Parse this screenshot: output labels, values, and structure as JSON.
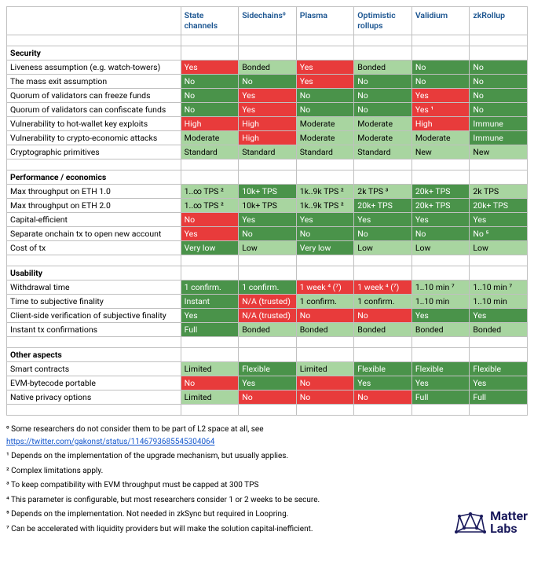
{
  "colors": {
    "green_dark": "#4a934a",
    "green_light": "#a8d5a0",
    "red": "#e83b3b",
    "header_text": "#1a5490",
    "link": "#1155cc",
    "logo": "#1a1a5c"
  },
  "columns": [
    "",
    "State channels",
    "Sidechains⁰",
    "Plasma",
    "Optimistic rollups",
    "Validium",
    "zkRollup"
  ],
  "sections": [
    {
      "title": "Security",
      "rows": [
        {
          "label": "Liveness assumption (e.g. watch-towers)",
          "cells": [
            {
              "t": "Yes",
              "c": "red"
            },
            {
              "t": "Bonded",
              "c": "green-light"
            },
            {
              "t": "Yes",
              "c": "red"
            },
            {
              "t": "Bonded",
              "c": "green-light"
            },
            {
              "t": "No",
              "c": "green-dark"
            },
            {
              "t": "No",
              "c": "green-dark"
            }
          ]
        },
        {
          "label": "The mass exit assumption",
          "cells": [
            {
              "t": "No",
              "c": "green-dark"
            },
            {
              "t": "No",
              "c": "green-dark"
            },
            {
              "t": "Yes",
              "c": "red"
            },
            {
              "t": "No",
              "c": "green-dark"
            },
            {
              "t": "No",
              "c": "green-dark"
            },
            {
              "t": "No",
              "c": "green-dark"
            }
          ]
        },
        {
          "label": "Quorum of validators can freeze funds",
          "cells": [
            {
              "t": "No",
              "c": "green-dark"
            },
            {
              "t": "Yes",
              "c": "red"
            },
            {
              "t": "No",
              "c": "green-dark"
            },
            {
              "t": "No",
              "c": "green-dark"
            },
            {
              "t": "Yes",
              "c": "red"
            },
            {
              "t": "No",
              "c": "green-dark"
            }
          ]
        },
        {
          "label": "Quorum of validators can confiscate funds",
          "cells": [
            {
              "t": "No",
              "c": "green-dark"
            },
            {
              "t": "Yes",
              "c": "red"
            },
            {
              "t": "No",
              "c": "green-dark"
            },
            {
              "t": "No",
              "c": "green-dark"
            },
            {
              "t": "Yes ¹",
              "c": "red"
            },
            {
              "t": "No",
              "c": "green-dark"
            }
          ]
        },
        {
          "label": "Vulnerability to hot-wallet key exploits",
          "cells": [
            {
              "t": "High",
              "c": "red"
            },
            {
              "t": "High",
              "c": "red"
            },
            {
              "t": "Moderate",
              "c": "green-light"
            },
            {
              "t": "Moderate",
              "c": "green-light"
            },
            {
              "t": "High",
              "c": "red"
            },
            {
              "t": "Immune",
              "c": "green-dark"
            }
          ]
        },
        {
          "label": "Vulnerability to crypto-economic attacks",
          "cells": [
            {
              "t": "Moderate",
              "c": "green-light"
            },
            {
              "t": "High",
              "c": "red"
            },
            {
              "t": "Moderate",
              "c": "green-light"
            },
            {
              "t": "Moderate",
              "c": "green-light"
            },
            {
              "t": "Moderate",
              "c": "green-light"
            },
            {
              "t": "Immune",
              "c": "green-dark"
            }
          ]
        },
        {
          "label": "Cryptographic primitives",
          "cells": [
            {
              "t": "Standard",
              "c": "green-light"
            },
            {
              "t": "Standard",
              "c": "green-light"
            },
            {
              "t": "Standard",
              "c": "green-light"
            },
            {
              "t": "Standard",
              "c": "green-light"
            },
            {
              "t": "New",
              "c": "green-light"
            },
            {
              "t": "New",
              "c": "green-light"
            }
          ]
        }
      ]
    },
    {
      "title": "Performance / economics",
      "rows": [
        {
          "label": "Max throughput on ETH 1.0",
          "cells": [
            {
              "t": "1..∞ TPS ²",
              "c": "green-light"
            },
            {
              "t": "10k+ TPS",
              "c": "green-dark"
            },
            {
              "t": "1k..9k TPS ²",
              "c": "green-light"
            },
            {
              "t": "2k TPS ³",
              "c": "green-light"
            },
            {
              "t": "20k+ TPS",
              "c": "green-dark"
            },
            {
              "t": "2k TPS",
              "c": "green-light"
            }
          ]
        },
        {
          "label": "Max throughput on ETH 2.0",
          "cells": [
            {
              "t": "1..∞ TPS ²",
              "c": "green-light"
            },
            {
              "t": "10k+ TPS",
              "c": "green-light"
            },
            {
              "t": "1k..9k TPS ²",
              "c": "green-light"
            },
            {
              "t": "20k+ TPS",
              "c": "green-dark"
            },
            {
              "t": "20k+ TPS",
              "c": "green-dark"
            },
            {
              "t": "20k+ TPS",
              "c": "green-dark"
            }
          ]
        },
        {
          "label": "Capital-efficient",
          "cells": [
            {
              "t": "No",
              "c": "red"
            },
            {
              "t": "Yes",
              "c": "green-dark"
            },
            {
              "t": "Yes",
              "c": "green-dark"
            },
            {
              "t": "Yes",
              "c": "green-dark"
            },
            {
              "t": "Yes",
              "c": "green-dark"
            },
            {
              "t": "Yes",
              "c": "green-dark"
            }
          ]
        },
        {
          "label": "Separate onchain tx to open new account",
          "cells": [
            {
              "t": "Yes",
              "c": "red"
            },
            {
              "t": "No",
              "c": "green-dark"
            },
            {
              "t": "No",
              "c": "green-dark"
            },
            {
              "t": "No",
              "c": "green-dark"
            },
            {
              "t": "No",
              "c": "green-dark"
            },
            {
              "t": "No ⁵",
              "c": "green-dark"
            }
          ]
        },
        {
          "label": "Cost of tx",
          "cells": [
            {
              "t": "Very low",
              "c": "green-dark"
            },
            {
              "t": "Low",
              "c": "green-light"
            },
            {
              "t": "Very low",
              "c": "green-dark"
            },
            {
              "t": "Low",
              "c": "green-light"
            },
            {
              "t": "Low",
              "c": "green-light"
            },
            {
              "t": "Low",
              "c": "green-light"
            }
          ]
        }
      ]
    },
    {
      "title": "Usability",
      "rows": [
        {
          "label": "Withdrawal time",
          "cells": [
            {
              "t": "1 confirm.",
              "c": "green-dark"
            },
            {
              "t": "1 confirm.",
              "c": "green-dark"
            },
            {
              "t": "1 week ⁴ (⁷)",
              "c": "red"
            },
            {
              "t": "1 week ⁴ (⁷)",
              "c": "red"
            },
            {
              "t": "1..10 min ⁷",
              "c": "green-light"
            },
            {
              "t": "1..10 min ⁷",
              "c": "green-light"
            }
          ]
        },
        {
          "label": "Time to subjective finality",
          "cells": [
            {
              "t": "Instant",
              "c": "green-dark"
            },
            {
              "t": "N/A (trusted)",
              "c": "red"
            },
            {
              "t": "1 confirm.",
              "c": "green-light"
            },
            {
              "t": "1 confirm.",
              "c": "green-light"
            },
            {
              "t": "1..10 min",
              "c": "green-light"
            },
            {
              "t": "1..10 min",
              "c": "green-light"
            }
          ]
        },
        {
          "label": "Client-side verification of subjective finality",
          "cells": [
            {
              "t": "Yes",
              "c": "green-dark"
            },
            {
              "t": "N/A (trusted)",
              "c": "red"
            },
            {
              "t": "No",
              "c": "red"
            },
            {
              "t": "No",
              "c": "red"
            },
            {
              "t": "Yes",
              "c": "green-dark"
            },
            {
              "t": "Yes",
              "c": "green-dark"
            }
          ]
        },
        {
          "label": "Instant tx confirmations",
          "cells": [
            {
              "t": "Full",
              "c": "green-dark"
            },
            {
              "t": "Bonded",
              "c": "green-light"
            },
            {
              "t": "Bonded",
              "c": "green-light"
            },
            {
              "t": "Bonded",
              "c": "green-light"
            },
            {
              "t": "Bonded",
              "c": "green-light"
            },
            {
              "t": "Bonded",
              "c": "green-light"
            }
          ]
        }
      ]
    },
    {
      "title": "Other aspects",
      "rows": [
        {
          "label": "Smart contracts",
          "cells": [
            {
              "t": "Limited",
              "c": "green-light"
            },
            {
              "t": "Flexible",
              "c": "green-dark"
            },
            {
              "t": "Limited",
              "c": "green-light"
            },
            {
              "t": "Flexible",
              "c": "green-dark"
            },
            {
              "t": "Flexible",
              "c": "green-dark"
            },
            {
              "t": "Flexible",
              "c": "green-dark"
            }
          ]
        },
        {
          "label": "EVM-bytecode portable",
          "cells": [
            {
              "t": "No",
              "c": "red"
            },
            {
              "t": "Yes",
              "c": "green-dark"
            },
            {
              "t": "No",
              "c": "red"
            },
            {
              "t": "Yes",
              "c": "green-dark"
            },
            {
              "t": "Yes",
              "c": "green-dark"
            },
            {
              "t": "Yes",
              "c": "green-dark"
            }
          ]
        },
        {
          "label": "Native privacy options",
          "cells": [
            {
              "t": "Limited",
              "c": "green-light"
            },
            {
              "t": "No",
              "c": "red"
            },
            {
              "t": "No",
              "c": "red"
            },
            {
              "t": "No",
              "c": "red"
            },
            {
              "t": "Full",
              "c": "green-dark"
            },
            {
              "t": "Full",
              "c": "green-dark"
            }
          ]
        }
      ]
    }
  ],
  "footnotes": [
    {
      "sup": "⁰",
      "text": "Some researchers do not consider them to be part of L2 space at all, see ",
      "link": "https://twitter.com/gakonst/status/1146793685545304064"
    },
    {
      "sup": "¹",
      "text": "Depends on the implementation of the upgrade mechanism, but usually applies."
    },
    {
      "sup": "²",
      "text": "Complex limitations apply."
    },
    {
      "sup": "³",
      "text": "To keep compatibility with EVM throughput must be capped at 300 TPS"
    },
    {
      "sup": "⁴",
      "text": "This parameter is configurable, but most researchers consider 1 or 2 weeks to be secure."
    },
    {
      "sup": "⁵",
      "text": "Depends on the implementation. Not needed in zkSync but required in Loopring."
    },
    {
      "sup": "⁷",
      "text": "Can be accelerated with liquidity providers but will make the solution capital-inefficient."
    }
  ],
  "logo": {
    "line1": "Matter",
    "line2": "Labs"
  }
}
